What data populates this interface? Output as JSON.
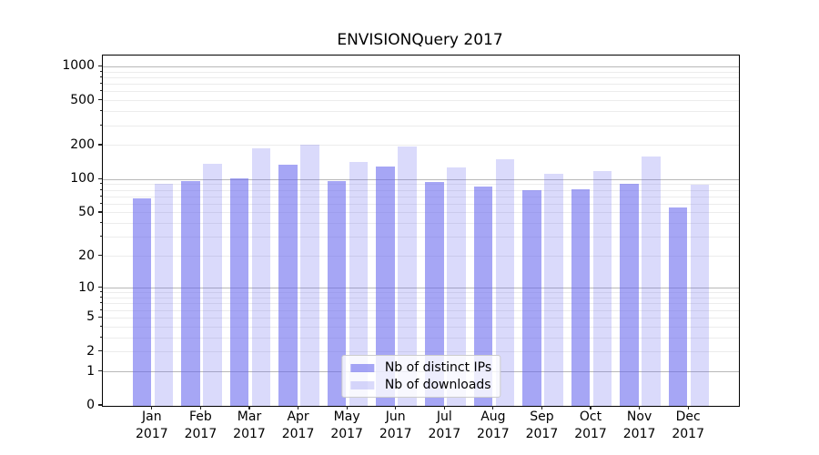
{
  "chart_data": {
    "type": "bar",
    "title": "ENVISIONQuery 2017",
    "scale": "log1p",
    "categories": [
      "Jan 2017",
      "Feb 2017",
      "Mar 2017",
      "Apr 2017",
      "May 2017",
      "Jun 2017",
      "Jul 2017",
      "Aug 2017",
      "Sep 2017",
      "Oct 2017",
      "Nov 2017",
      "Dec 2017"
    ],
    "month_labels": [
      "Jan",
      "Feb",
      "Mar",
      "Apr",
      "May",
      "Jun",
      "Jul",
      "Aug",
      "Sep",
      "Oct",
      "Nov",
      "Dec"
    ],
    "year_label": "2017",
    "series": [
      {
        "name": "Nb of distinct IPs",
        "color": "rgba(102,102,238,0.58)",
        "values": [
          67,
          97,
          102,
          134,
          96,
          130,
          95,
          87,
          80,
          82,
          91,
          56
        ]
      },
      {
        "name": "Nb of downloads",
        "color": "rgba(102,102,238,0.24)",
        "values": [
          92,
          138,
          190,
          205,
          143,
          196,
          128,
          152,
          112,
          119,
          160,
          90
        ]
      }
    ],
    "xlabel": "",
    "ylabel": "",
    "ylim": [
      0,
      1259
    ],
    "yticks": [
      0,
      1,
      2,
      5,
      10,
      20,
      50,
      100,
      200,
      500,
      1000
    ],
    "grid": {
      "major_at": [
        1,
        10,
        100,
        1000
      ],
      "major_color": "#b8b8b8",
      "minor_color": "#ececec",
      "grid_on": true
    },
    "legend": {
      "position": "lower center",
      "border_color": "#cccccc"
    }
  }
}
